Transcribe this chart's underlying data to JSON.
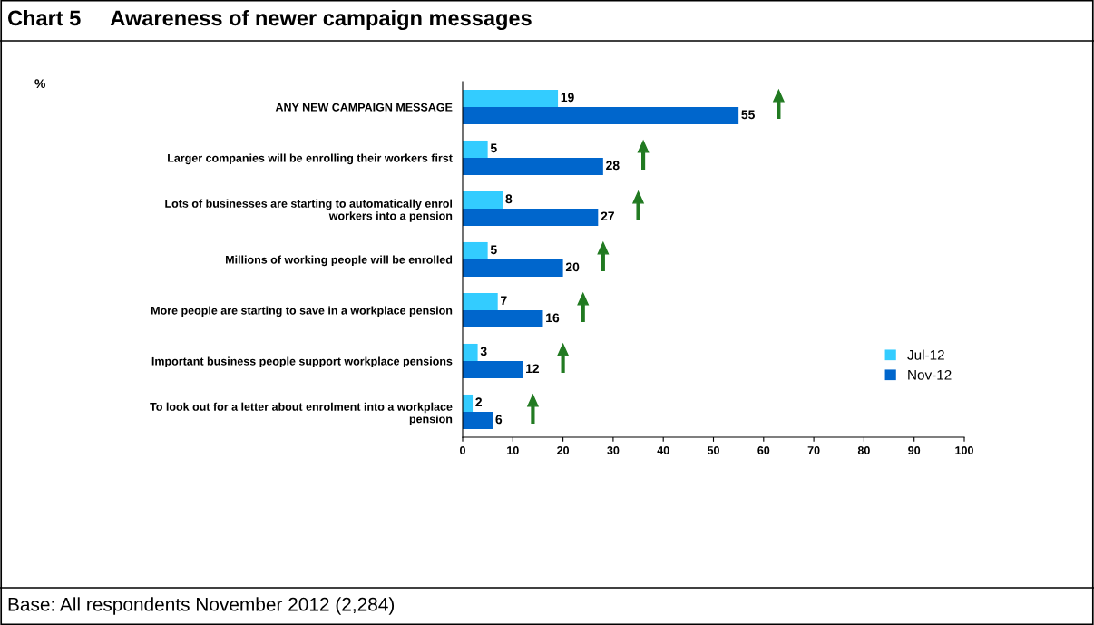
{
  "chart_data": {
    "type": "bar",
    "orientation": "horizontal",
    "title": "Chart 5     Awareness of newer campaign messages",
    "categories": [
      "ANY NEW CAMPAIGN MESSAGE",
      "Larger companies will be enrolling their workers first",
      "Lots of businesses are starting to automatically enrol\nworkers into a pension",
      "Millions of working people will be enrolled",
      "More people are starting to save in a workplace pension",
      "Important business people support workplace pensions",
      "To look out for a letter about enrolment into a workplace\npension"
    ],
    "series": [
      {
        "name": "Jul-12",
        "color": "#33ccff",
        "values": [
          19,
          5,
          8,
          5,
          7,
          3,
          2
        ]
      },
      {
        "name": "Nov-12",
        "color": "#0066cc",
        "values": [
          55,
          28,
          27,
          20,
          16,
          12,
          6
        ]
      }
    ],
    "xlim": [
      0,
      100
    ],
    "xticks": [
      0,
      10,
      20,
      30,
      40,
      50,
      60,
      70,
      80,
      90,
      100
    ],
    "data_labels": true,
    "grid": false,
    "legend": "right",
    "annotations": [
      "%",
      "Base: All respondents November 2012 (2,284)"
    ]
  }
}
